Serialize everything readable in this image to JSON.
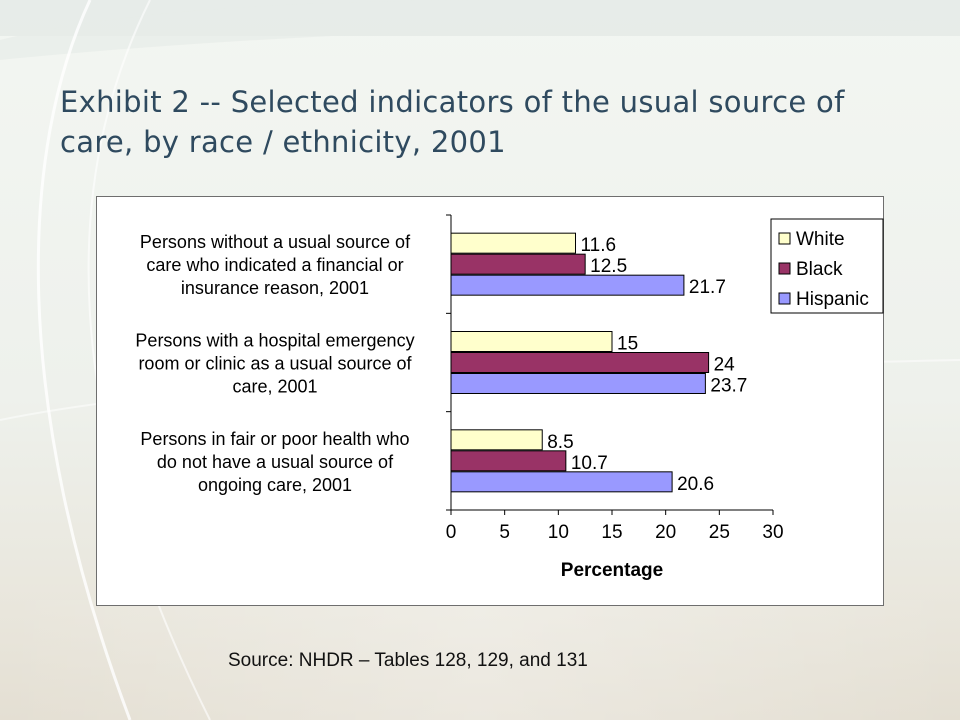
{
  "slide": {
    "title": "Exhibit 2 -- Selected indicators of the usual source of care, by race / ethnicity, 2001",
    "source": "Source:  NHDR – Tables 128, 129, and 131"
  },
  "chart_data": {
    "type": "bar",
    "orientation": "horizontal",
    "categories": [
      [
        "Persons without a usual source of",
        "care who indicated a financial or",
        "insurance reason, 2001"
      ],
      [
        "Persons with a hospital emergency",
        "room or clinic as a usual source of",
        "care, 2001"
      ],
      [
        "Persons in fair or poor health who",
        "do not have a usual source of",
        "ongoing care, 2001"
      ]
    ],
    "series": [
      {
        "name": "White",
        "color": "#ffffcc",
        "values": [
          11.6,
          15,
          8.5
        ],
        "labels": [
          "11.6",
          "15",
          "8.5"
        ]
      },
      {
        "name": "Black",
        "color": "#993366",
        "values": [
          12.5,
          24,
          10.7
        ],
        "labels": [
          "12.5",
          "24",
          "10.7"
        ]
      },
      {
        "name": "Hispanic",
        "color": "#9999ff",
        "values": [
          21.7,
          23.7,
          20.6
        ],
        "labels": [
          "21.7",
          "23.7",
          "20.6"
        ]
      }
    ],
    "xlabel": "Percentage",
    "xlim": [
      0,
      30
    ],
    "xticks": [
      0,
      5,
      10,
      15,
      20,
      25,
      30
    ],
    "grid": false,
    "legend_position": "top-right"
  }
}
